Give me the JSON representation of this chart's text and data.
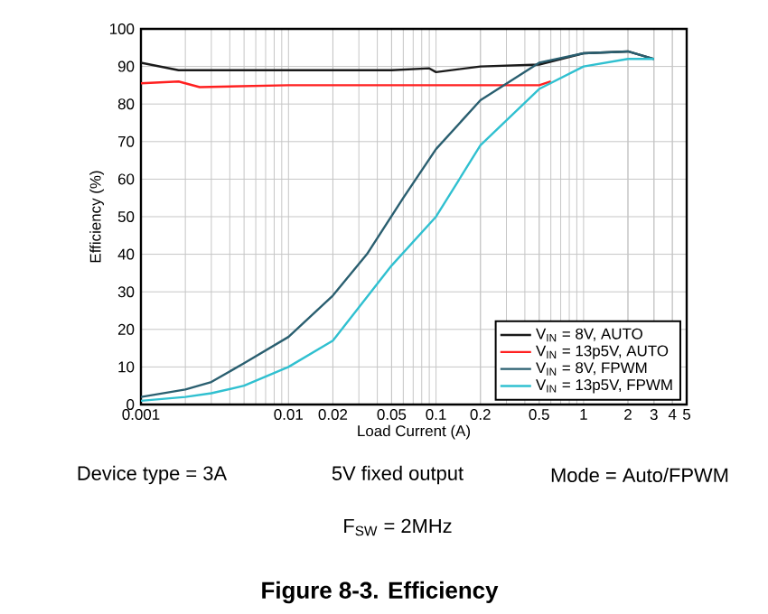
{
  "chart_data": {
    "type": "line",
    "title": "Figure 8-3. Efficiency",
    "xlabel": "Load Current (A)",
    "ylabel": "Efficiency (%)",
    "annotations": [
      "Device type = 3A",
      "5V fixed output",
      "Mode = Auto/FPWM",
      "F$_{SW}$ = 2MHz"
    ],
    "log": "x",
    "grid": true,
    "legend": "bottom right",
    "line_style": "solid",
    "marker": "none",
    "xlim": [
      0.001,
      5
    ],
    "xticks": [
      0.001,
      0.01,
      0.02,
      0.05,
      0.1,
      0.2,
      0.5,
      1,
      2,
      3,
      4,
      5
    ],
    "ylim": [
      0,
      100
    ],
    "yticks": [
      0,
      10,
      20,
      30,
      40,
      50,
      60,
      70,
      80,
      90,
      100
    ],
    "series": [
      {
        "name": "V$_{IN}$ = 8V, AUTO",
        "color": "#1a1a1a",
        "x": [
          0.001,
          0.0018,
          0.003,
          0.01,
          0.05,
          0.09,
          0.1,
          0.2,
          0.5,
          1,
          2,
          3
        ],
        "values": [
          91,
          89,
          89,
          89,
          89,
          89.5,
          88.5,
          90,
          90.5,
          93.5,
          94,
          92
        ]
      },
      {
        "name": "V$_{IN}$ = 13p5V, AUTO",
        "color": "#ff2020",
        "x": [
          0.001,
          0.0018,
          0.0025,
          0.01,
          0.1,
          0.5,
          0.6
        ],
        "values": [
          85.5,
          86,
          84.5,
          85,
          85,
          85,
          86
        ]
      },
      {
        "name": "V$_{IN}$ = 8V, FPWM",
        "color": "#2a5f70",
        "x": [
          0.001,
          0.002,
          0.003,
          0.005,
          0.01,
          0.02,
          0.034,
          0.06,
          0.1,
          0.2,
          0.5,
          1,
          2,
          3
        ],
        "values": [
          2,
          4,
          6,
          11,
          18,
          29,
          40,
          55,
          68,
          81,
          91,
          93.5,
          94,
          92
        ]
      },
      {
        "name": "V$_{IN}$ = 13p5V, FPWM",
        "color": "#30c0d0",
        "x": [
          0.001,
          0.002,
          0.003,
          0.005,
          0.01,
          0.02,
          0.05,
          0.1,
          0.2,
          0.5,
          1,
          2,
          3
        ],
        "values": [
          1,
          2,
          3,
          5,
          10,
          17,
          37,
          50,
          69,
          84,
          90,
          92,
          92
        ]
      }
    ]
  }
}
